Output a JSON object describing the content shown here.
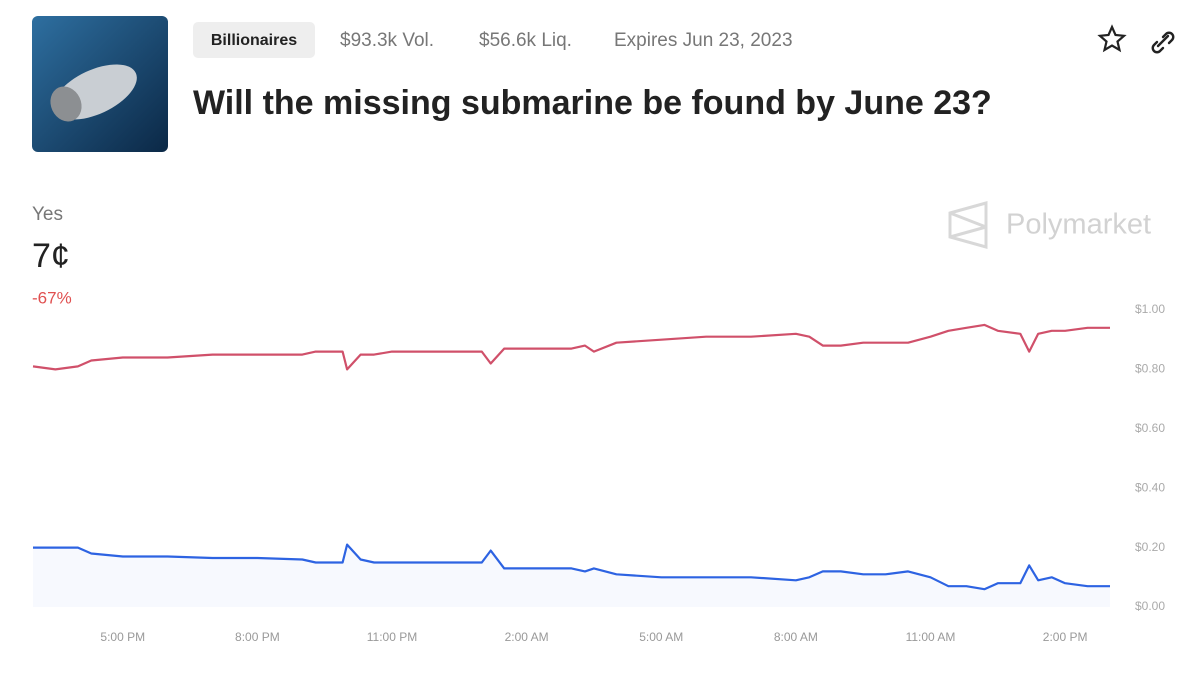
{
  "header": {
    "tag": "Billionaires",
    "volume": "$93.3k Vol.",
    "liquidity": "$56.6k Liq.",
    "expires": "Expires Jun 23, 2023",
    "title": "Will the missing submarine be found by June 23?"
  },
  "summary": {
    "outcome": "Yes",
    "price": "7¢",
    "change": "-67%",
    "brand": "Polymarket"
  },
  "chart_data": {
    "type": "line",
    "x": [
      0,
      0.5,
      1,
      1.3,
      2,
      3,
      4,
      5,
      6,
      6.3,
      6.9,
      7,
      7.3,
      7.6,
      8,
      9,
      10,
      10.2,
      10.5,
      11,
      12,
      12.3,
      12.5,
      13,
      14,
      15,
      16,
      17,
      17.3,
      17.6,
      18,
      18.5,
      19,
      19.5,
      20,
      20.4,
      20.8,
      21.2,
      21.5,
      22,
      22.2,
      22.4,
      22.7,
      23,
      23.5,
      24
    ],
    "series": [
      {
        "color": "#d0506a",
        "values": [
          0.81,
          0.8,
          0.81,
          0.83,
          0.84,
          0.84,
          0.85,
          0.85,
          0.85,
          0.86,
          0.86,
          0.8,
          0.85,
          0.85,
          0.86,
          0.86,
          0.86,
          0.82,
          0.87,
          0.87,
          0.87,
          0.88,
          0.86,
          0.89,
          0.9,
          0.91,
          0.91,
          0.92,
          0.91,
          0.88,
          0.88,
          0.89,
          0.89,
          0.89,
          0.91,
          0.93,
          0.94,
          0.95,
          0.93,
          0.92,
          0.86,
          0.92,
          0.93,
          0.93,
          0.94,
          0.94
        ]
      },
      {
        "color": "#2d63e2",
        "values": [
          0.2,
          0.2,
          0.2,
          0.18,
          0.17,
          0.17,
          0.165,
          0.165,
          0.16,
          0.15,
          0.15,
          0.21,
          0.16,
          0.15,
          0.15,
          0.15,
          0.15,
          0.19,
          0.13,
          0.13,
          0.13,
          0.12,
          0.13,
          0.11,
          0.1,
          0.1,
          0.1,
          0.09,
          0.1,
          0.12,
          0.12,
          0.11,
          0.11,
          0.12,
          0.1,
          0.07,
          0.07,
          0.06,
          0.08,
          0.08,
          0.14,
          0.09,
          0.1,
          0.08,
          0.07,
          0.07
        ]
      }
    ],
    "xlim": [
      0,
      24
    ],
    "xticks": [
      {
        "value": 2,
        "label": "5:00 PM"
      },
      {
        "value": 5,
        "label": "8:00 PM"
      },
      {
        "value": 8,
        "label": "11:00 PM"
      },
      {
        "value": 11,
        "label": "2:00 AM"
      },
      {
        "value": 14,
        "label": "5:00 AM"
      },
      {
        "value": 17,
        "label": "8:00 AM"
      },
      {
        "value": 20,
        "label": "11:00 AM"
      },
      {
        "value": 23,
        "label": "2:00 PM"
      }
    ],
    "ylim": [
      0,
      1
    ],
    "yticks": [
      {
        "value": 0,
        "label": "$0.00"
      },
      {
        "value": 0.2,
        "label": "$0.20"
      },
      {
        "value": 0.4,
        "label": "$0.40"
      },
      {
        "value": 0.6,
        "label": "$0.60"
      },
      {
        "value": 0.8,
        "label": "$0.80"
      },
      {
        "value": 1,
        "label": "$1.00"
      }
    ],
    "area_under_last": true
  }
}
